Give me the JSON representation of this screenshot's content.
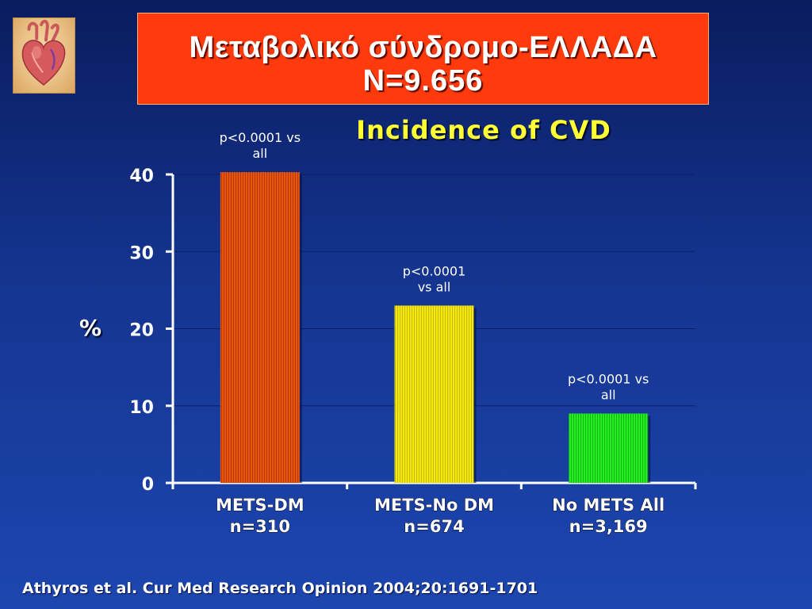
{
  "header": {
    "title_line1": "Μεταβολικό σύνδρομο-ΕΛΛΑΔΑ",
    "title_line2": "N=9.656"
  },
  "logo": {
    "icon": "heart-anatomy-icon"
  },
  "chart_data": {
    "type": "bar",
    "title": "Incidence of CVD",
    "ylabel": "%",
    "xlabel": "",
    "ylim": [
      0,
      40
    ],
    "yticks": [
      "0",
      "10",
      "20",
      "30",
      "40"
    ],
    "categories": [
      {
        "line1": "METS-DM",
        "line2": "n=310"
      },
      {
        "line1": "METS-No DM",
        "line2": "n=674"
      },
      {
        "line1": "No METS All",
        "line2": "n=3,169"
      }
    ],
    "values": [
      40.3,
      23,
      9
    ],
    "bar_colors": [
      "#e8560c",
      "#f0e800",
      "#22e81c"
    ],
    "annotations": [
      {
        "line1": "p<0.0001 vs",
        "line2": "all"
      },
      {
        "line1": "p<0.0001",
        "line2": "vs all"
      },
      {
        "line1": "p<0.0001 vs",
        "line2": "all"
      }
    ],
    "grid": true,
    "legend": "none"
  },
  "footer": {
    "citation": "Athyros et al. Cur Med Research Opinion 2004;20:1691-1701"
  }
}
